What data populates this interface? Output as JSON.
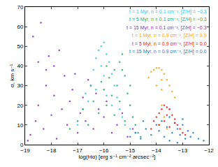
{
  "chart_data": {
    "type": "scatter",
    "x_label": "log(Hα) [erg s⁻¹ cm⁻² arcsec⁻²]",
    "y_label": "σ, km s⁻¹",
    "xlim": [
      -19,
      -12
    ],
    "xticks": [
      -19,
      -18,
      -17,
      -16,
      -15,
      -14,
      -13,
      -12
    ],
    "ylim": [
      0,
      70
    ],
    "yticks": [
      0,
      10,
      20,
      30,
      40,
      50,
      60,
      70
    ],
    "legend": "upper right",
    "marker": "dot",
    "series": [
      {
        "name": "t = 15 Myr, n = 0.1 cm⁻³, [Z/H] = −0.3",
        "color": "#7b2fbf",
        "x": [
          -18.8,
          -18.6,
          -18.5,
          -18.3,
          -18.2,
          -18.0,
          -17.9,
          -17.8,
          -17.6,
          -17.5,
          -17.4,
          -17.3,
          -17.2,
          -17.0,
          -16.9,
          -16.8,
          -16.7,
          -16.5,
          -16.4,
          -16.2,
          -16.0,
          -15.9,
          -15.7,
          -15.5,
          -15.3,
          -15.1,
          -14.9,
          -18.7,
          -18.4,
          -18.1,
          -17.7,
          -17.9,
          -17.1,
          -16.6,
          -16.3,
          -18.9,
          -18.5,
          -18.2
        ],
        "values": [
          5,
          12,
          20,
          8,
          30,
          15,
          25,
          3,
          18,
          35,
          10,
          22,
          28,
          6,
          16,
          24,
          12,
          30,
          8,
          18,
          14,
          22,
          6,
          10,
          16,
          4,
          8,
          55,
          62,
          45,
          48,
          40,
          36,
          33,
          26,
          2,
          42,
          38
        ]
      },
      {
        "name": "t = 1 Myr, n = 0.1 cm⁻³, [Z/H] = −0.3",
        "color": "#2ec4e6",
        "x": [
          -17.0,
          -16.8,
          -16.7,
          -16.5,
          -16.4,
          -16.3,
          -16.2,
          -16.1,
          -16.0,
          -16.0,
          -15.9,
          -15.8,
          -15.7,
          -15.6,
          -15.5,
          -15.4,
          -15.3,
          -15.2,
          -15.0,
          -16.6,
          -16.3,
          -16.1,
          -15.9,
          -15.7,
          -14.8
        ],
        "values": [
          10,
          18,
          26,
          30,
          38,
          44,
          48,
          50,
          52,
          35,
          46,
          42,
          36,
          30,
          24,
          18,
          14,
          10,
          8,
          22,
          28,
          40,
          25,
          20,
          6
        ]
      },
      {
        "name": "t = 5 Myr, n = 0.1 cm⁻³, [Z/H] = −0.3",
        "color": "#1faa5a",
        "x": [
          -17.3,
          -17.0,
          -16.8,
          -16.6,
          -16.4,
          -16.2,
          -16.0,
          -15.9,
          -15.8,
          -15.7,
          -15.6,
          -15.5,
          -15.4,
          -15.3,
          -15.2,
          -15.1,
          -15.0,
          -14.9,
          -14.8,
          -14.7,
          -15.6,
          -15.4,
          -15.2,
          -15.9,
          -16.1,
          -15.3,
          -15.0,
          -14.6
        ],
        "values": [
          8,
          12,
          18,
          10,
          22,
          16,
          28,
          20,
          34,
          25,
          38,
          30,
          42,
          46,
          35,
          26,
          20,
          14,
          10,
          6,
          15,
          22,
          12,
          40,
          32,
          38,
          30,
          4
        ]
      },
      {
        "name": "t = 15 Myr, n = 0.9 cm⁻³, [Z/H] = 0.0",
        "color": "#1f77c8",
        "x": [
          -15.0,
          -14.8,
          -14.6,
          -14.4,
          -14.2,
          -14.0,
          -13.9,
          -13.8,
          -13.7,
          -13.6,
          -13.5,
          -13.4,
          -13.3,
          -13.2,
          -13.1,
          -13.0,
          -12.9,
          -12.8,
          -12.7,
          -12.6,
          -12.4,
          -12.2,
          -13.5,
          -13.2,
          -13.0,
          -14.5
        ],
        "values": [
          4,
          6,
          3,
          8,
          5,
          10,
          7,
          12,
          4,
          9,
          14,
          6,
          11,
          8,
          5,
          10,
          3,
          7,
          4,
          6,
          3,
          2,
          2,
          1,
          13,
          12
        ]
      },
      {
        "name": "t = 1 Myr, n = 0.9 cm⁻³, [Z/H] = 0.0",
        "color": "#f0a020",
        "x": [
          -14.3,
          -14.2,
          -14.1,
          -14.0,
          -13.9,
          -13.8,
          -13.7,
          -13.6,
          -13.5,
          -13.4,
          -13.3,
          -13.8,
          -13.8,
          -13.7,
          -13.9,
          -13.6,
          -13.5,
          -14.0,
          -13.8
        ],
        "values": [
          34,
          37,
          38,
          39,
          39,
          38,
          36,
          33,
          30,
          27,
          24,
          28,
          20,
          14,
          10,
          8,
          18,
          30,
          33
        ]
      },
      {
        "name": "t = 5 Myr, n = 0.9 cm⁻³, [Z/H] = 0.0",
        "color": "#e02020",
        "x": [
          -14.2,
          -14.1,
          -14.0,
          -13.9,
          -13.8,
          -13.7,
          -13.6,
          -13.5,
          -13.4,
          -13.3,
          -13.2,
          -13.1,
          -13.0,
          -12.9,
          -13.7,
          -13.5,
          -13.9,
          -13.6,
          -13.3
        ],
        "values": [
          8,
          12,
          14,
          16,
          18,
          20,
          19,
          18,
          15,
          13,
          10,
          8,
          6,
          5,
          12,
          9,
          10,
          15,
          11
        ]
      }
    ]
  }
}
